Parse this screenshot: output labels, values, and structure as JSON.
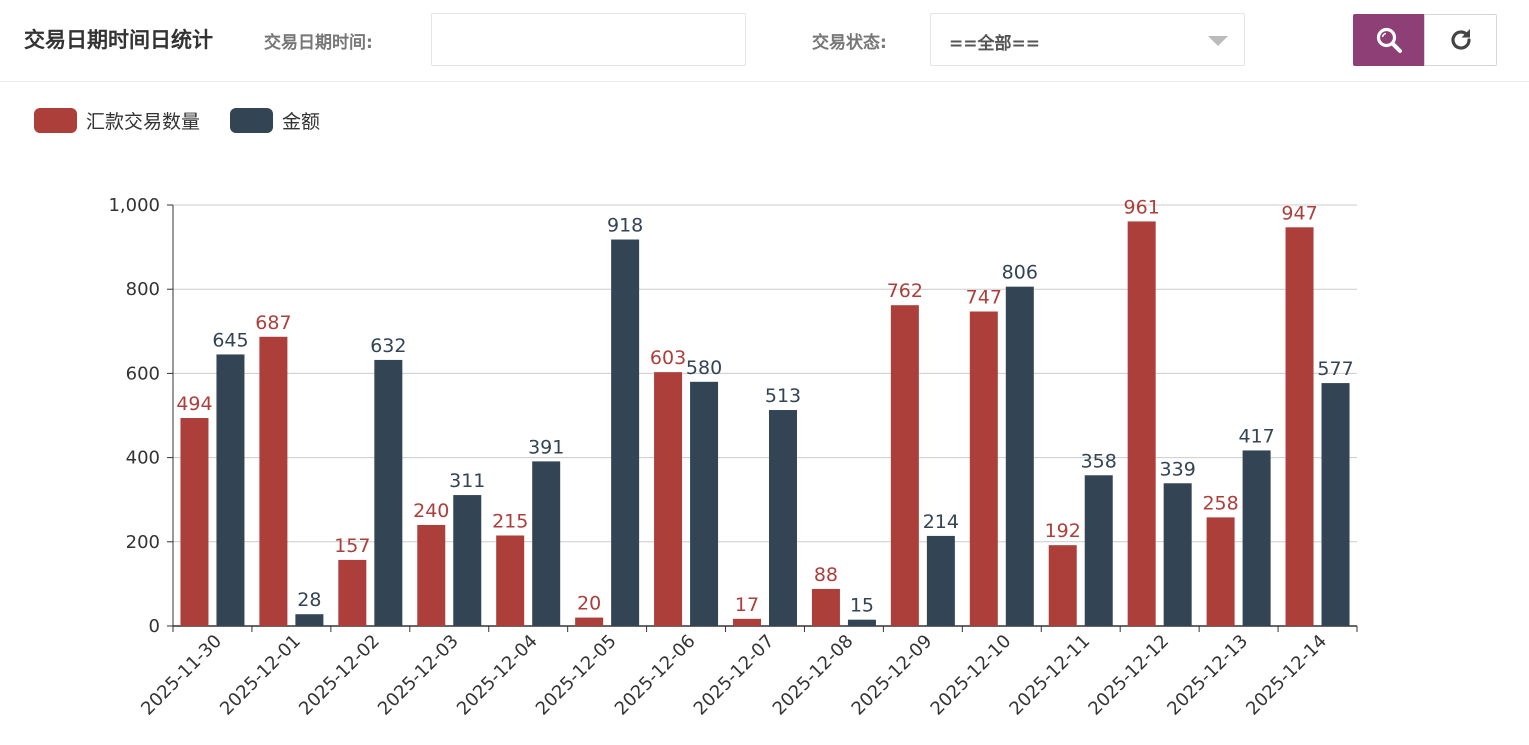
{
  "header": {
    "title": "交易日期时间日统计",
    "date_label": "交易日期时间:",
    "date_value": "",
    "status_label": "交易状态:",
    "status_value": "==全部=="
  },
  "buttons": {
    "search_icon": "search-icon",
    "refresh_icon": "refresh-icon",
    "search_color": "#8e3f76"
  },
  "chart_data": {
    "type": "bar",
    "categories": [
      "2025-11-30",
      "2025-12-01",
      "2025-12-02",
      "2025-12-03",
      "2025-12-04",
      "2025-12-05",
      "2025-12-06",
      "2025-12-07",
      "2025-12-08",
      "2025-12-09",
      "2025-12-10",
      "2025-12-11",
      "2025-12-12",
      "2025-12-13",
      "2025-12-14"
    ],
    "series": [
      {
        "name": "汇款交易数量",
        "color": "#ad3f3b",
        "values": [
          494,
          687,
          157,
          240,
          215,
          20,
          603,
          17,
          88,
          762,
          747,
          192,
          961,
          258,
          947
        ]
      },
      {
        "name": "金额",
        "color": "#334455",
        "values": [
          645,
          28,
          632,
          311,
          391,
          918,
          580,
          513,
          15,
          214,
          806,
          358,
          339,
          417,
          577
        ]
      }
    ],
    "ylim": [
      0,
      1000
    ],
    "yticks": [
      0,
      200,
      400,
      600,
      800,
      1000
    ],
    "ytick_labels": [
      "0",
      "200",
      "400",
      "600",
      "800",
      "1,000"
    ],
    "grid": true,
    "legend": "top-left",
    "data_labels": true,
    "xlabel": "",
    "ylabel": ""
  }
}
